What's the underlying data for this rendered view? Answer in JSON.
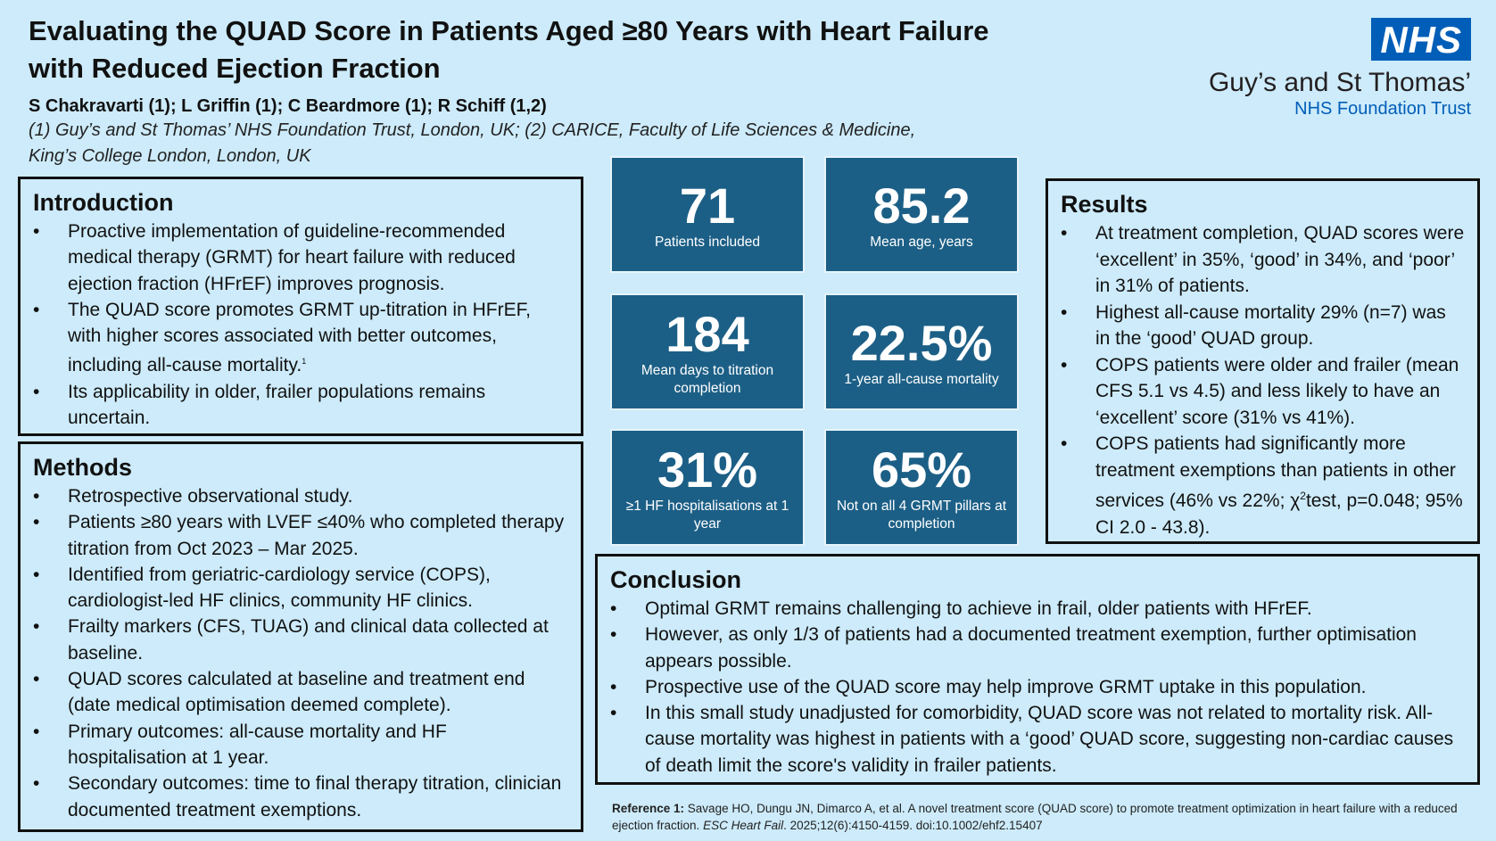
{
  "header": {
    "title_line1": "Evaluating the QUAD Score in Patients Aged ≥80 Years with Heart Failure",
    "title_line2": "with Reduced Ejection Fraction",
    "authors": "S Chakravarti (1); L Griffin (1); C Beardmore (1); R Schiff (1,2)",
    "affiliation_line1": "(1) Guy’s and St Thomas’ NHS Foundation Trust, London, UK; (2) CARICE, Faculty of Life Sciences & Medicine,",
    "affiliation_line2": "King’s College London, London, UK"
  },
  "logo": {
    "nhs": "NHS",
    "trust_name": "Guy’s and St Thomas’",
    "trust_sub": "NHS Foundation Trust",
    "nhs_blue": "#005eb8"
  },
  "introduction": {
    "heading": "Introduction",
    "items": [
      "Proactive implementation of guideline-recommended medical therapy (GRMT) for heart failure with reduced ejection fraction (HFrEF) improves prognosis.",
      "The QUAD score promotes GRMT up-titration in HFrEF, with higher scores associated with better outcomes, including all-cause mortality.",
      "Its applicability in older, frailer populations remains uncertain."
    ],
    "superscript": "1"
  },
  "methods": {
    "heading": "Methods",
    "items": [
      "Retrospective observational study.",
      "Patients ≥80 years with LVEF  ≤40% who completed therapy titration from Oct 2023 – Mar 2025.",
      "Identified from geriatric-cardiology service (COPS), cardiologist-led HF clinics, community HF clinics.",
      "Frailty markers (CFS, TUAG) and clinical data collected at baseline.",
      "QUAD scores calculated at baseline and treatment end (date medical optimisation deemed complete).",
      "Primary outcomes: all-cause mortality and HF hospitalisation at 1 year.",
      "Secondary outcomes: time to final therapy titration, clinician documented treatment exemptions."
    ]
  },
  "stats": [
    {
      "value": "71",
      "label": "Patients included"
    },
    {
      "value": "85.2",
      "label": "Mean age, years"
    },
    {
      "value": "184",
      "label": "Mean days to titration completion"
    },
    {
      "value": "22.5%",
      "label": "1-year all-cause mortality"
    },
    {
      "value": "31%",
      "label": "≥1 HF hospitalisations at 1 year"
    },
    {
      "value": "65%",
      "label": "Not on all 4 GRMT pillars at completion"
    }
  ],
  "results": {
    "heading": "Results",
    "items": [
      "At treatment completion, QUAD scores were ‘excellent’ in 35%, ‘good’ in 34%, and ‘poor’ in 31% of patients.",
      "Highest all-cause mortality 29% (n=7) was in the ‘good’ QUAD group.",
      "COPS patients were older and frailer (mean CFS 5.1 vs 4.5) and less likely to have an ‘excellent’ score (31% vs 41%)."
    ],
    "last_item_before": "COPS patients had significantly more treatment exemptions than patients in other services (46% vs 22%; χ",
    "last_item_sup": "2",
    "last_item_after": "test, p=0.048; 95% CI 2.0 - 43.8)."
  },
  "conclusion": {
    "heading": "Conclusion",
    "items": [
      "Optimal GRMT remains challenging to achieve in frail, older patients with HFrEF.",
      "However, as only 1/3 of patients had a documented treatment exemption, further optimisation appears possible.",
      "Prospective use of the QUAD score may help improve GRMT uptake in this population.",
      "In this small study unadjusted for comorbidity, QUAD score was not related to mortality risk. All-cause mortality was highest in patients with a ‘good’ QUAD score, suggesting non-cardiac causes of death limit the score's validity in frailer patients."
    ]
  },
  "reference": {
    "label": "Reference 1:",
    "text": " Savage HO, Dungu JN, Dimarco A, et al. A novel treatment score (QUAD score) to promote treatment optimization in heart failure with a reduced ejection fraction. ",
    "journal": "ESC Heart Fail",
    "rest": ". 2025;12(6):4150-4159. doi:10.1002/ehf2.15407"
  }
}
